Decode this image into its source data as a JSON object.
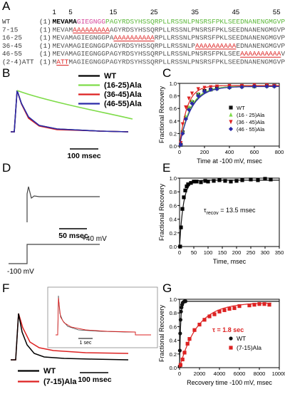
{
  "panels": {
    "A": {
      "letter": "A",
      "ruler": [
        "1",
        "5",
        "15",
        "25",
        "35",
        "45",
        "55"
      ],
      "rows": [
        {
          "label": "WT",
          "num": "(1)",
          "segments": [
            {
              "t": "MEVAMA",
              "c": "#000000",
              "b": true
            },
            {
              "t": "GIEGNGG",
              "c": "#d6489c"
            },
            {
              "t": "PAGYRDSYHSSQRPLLRSSNLPNSRSFPKLSEEDNANENGMGVPGS",
              "c": "#5cb83a"
            }
          ]
        },
        {
          "label": "7-15",
          "num": "(1)",
          "segments": [
            {
              "t": "MEVAM",
              "c": "#555555"
            },
            {
              "t": "AAAAAAAAA",
              "c": "#dd2222",
              "u": true
            },
            {
              "t": "AGYRDSYHSSQRPLLRSSNLPNSRSFPKLSEEDNANENGMGVPGS",
              "c": "#555555"
            }
          ]
        },
        {
          "label": "16-25",
          "num": "(1)",
          "segments": [
            {
              "t": "MEVAMAGIEGNGGPA",
              "c": "#555555"
            },
            {
              "t": "AAAAAAAAAA",
              "c": "#dd2222",
              "u": true
            },
            {
              "t": "RPLLRSSNLPNSRSFPKLSEEDNANENGMGVPGS",
              "c": "#555555"
            }
          ]
        },
        {
          "label": "36-45",
          "num": "(1)",
          "segments": [
            {
              "t": "MEVAMAGIEGNGGPAGYRDSYHSSQRPLLRSSNLP",
              "c": "#555555"
            },
            {
              "t": "AAAAAAAAAA",
              "c": "#dd2222",
              "u": true
            },
            {
              "t": "EDNANENGMGVPGS",
              "c": "#555555"
            }
          ]
        },
        {
          "label": "46-55",
          "num": "(1)",
          "segments": [
            {
              "t": "MEVAMAGIEGNGGPAGYRDSYHSSQRPLLRSSNLPNSRSFPKLSEE",
              "c": "#555555"
            },
            {
              "t": "AAAAAAAAAA",
              "c": "#dd2222",
              "u": true
            },
            {
              "t": "VPGS",
              "c": "#555555"
            }
          ]
        },
        {
          "label": "(2-4)ATT",
          "num": "(1)",
          "segments": [
            {
              "t": "M",
              "c": "#555555"
            },
            {
              "t": "ATT",
              "c": "#dd2222",
              "u": true
            },
            {
              "t": "MAGIEGNGGPAGYRDSYHSSQRPLLRSSNLPNSRSFPKLSEEDNANENGMGVPGS",
              "c": "#555555"
            }
          ]
        }
      ]
    },
    "B": {
      "letter": "B",
      "legend": [
        {
          "label": "WT",
          "color": "#000000"
        },
        {
          "label": "(16-25)Ala",
          "color": "#7fdc4a"
        },
        {
          "label": "(36-45)Ala",
          "color": "#dd2222"
        },
        {
          "label": "(46-55)Ala",
          "color": "#2a2aa8"
        }
      ],
      "scalebar": "100 msec"
    },
    "C": {
      "letter": "C",
      "chart_data": {
        "type": "scatter",
        "xlabel": "Time at -100 mV, msec",
        "ylabel": "Fractional Recovery",
        "xlim": [
          0,
          800
        ],
        "ylim": [
          0.0,
          1.0
        ],
        "xticks": [
          "0",
          "200",
          "400",
          "600",
          "800"
        ],
        "yticks": [
          "0.0",
          "0.2",
          "0.4",
          "0.6",
          "0.8",
          "1.0"
        ],
        "series": [
          {
            "name": "WT",
            "color": "#111111",
            "marker": "square",
            "x": [
              10,
              25,
              50,
              75,
              100,
              150,
              200,
              250,
              300,
              400,
              500,
              600,
              700,
              760
            ],
            "y": [
              0.02,
              0.22,
              0.45,
              0.6,
              0.7,
              0.82,
              0.88,
              0.9,
              0.92,
              0.94,
              0.95,
              0.95,
              0.96,
              0.96
            ]
          },
          {
            "name": "(16 - 25)Ala",
            "color": "#7fdc4a",
            "marker": "triangle-up",
            "x": [
              10,
              25,
              50,
              75,
              100,
              150,
              200,
              250,
              300,
              400,
              500,
              600,
              700,
              760
            ],
            "y": [
              0.03,
              0.24,
              0.47,
              0.62,
              0.72,
              0.83,
              0.88,
              0.9,
              0.92,
              0.94,
              0.95,
              0.95,
              0.96,
              0.96
            ]
          },
          {
            "name": "(36 - 45)Ala",
            "color": "#dd2222",
            "marker": "triangle-down",
            "x": [
              10,
              25,
              50,
              75,
              100,
              150,
              200,
              250,
              300,
              400,
              500,
              600,
              700,
              760
            ],
            "y": [
              0.05,
              0.35,
              0.62,
              0.76,
              0.84,
              0.91,
              0.93,
              0.94,
              0.95,
              0.96,
              0.96,
              0.97,
              0.97,
              0.96
            ]
          },
          {
            "name": "(46 - 55)Ala",
            "color": "#2a2aa8",
            "marker": "diamond",
            "x": [
              10,
              25,
              50,
              75,
              100,
              150,
              200,
              250,
              300,
              400,
              500,
              600,
              700,
              760
            ],
            "y": [
              0.02,
              0.2,
              0.43,
              0.58,
              0.68,
              0.8,
              0.87,
              0.9,
              0.91,
              0.93,
              0.94,
              0.95,
              0.95,
              0.95
            ]
          }
        ]
      }
    },
    "D": {
      "letter": "D",
      "scalebar": "50 msec",
      "v_hold": "-100 mV",
      "v_step": "+40 mV"
    },
    "E": {
      "letter": "E",
      "tau_symbol": "τ",
      "tau_sub": "recov",
      "tau_rest": " = 13.5 msec",
      "chart_data": {
        "type": "scatter",
        "xlabel": "Time, msec",
        "ylabel": "Fractional Recovery",
        "xlim": [
          0,
          350
        ],
        "ylim": [
          0.0,
          1.0
        ],
        "xticks": [
          "0",
          "50",
          "100",
          "150",
          "200",
          "250",
          "300",
          "350"
        ],
        "yticks": [
          "0.0",
          "0.2",
          "0.4",
          "0.6",
          "0.8",
          "1.0"
        ],
        "series": [
          {
            "x": [
              2,
              5,
              10,
              15,
              20,
              25,
              30,
              40,
              50,
              60,
              75,
              90,
              100,
              120,
              140,
              160,
              180,
              200,
              220,
              250,
              275,
              300,
              320
            ],
            "y": [
              0.0,
              0.28,
              0.55,
              0.72,
              0.82,
              0.88,
              0.91,
              0.93,
              0.95,
              0.95,
              0.94,
              0.96,
              0.95,
              0.96,
              0.97,
              0.96,
              0.95,
              0.96,
              0.97,
              0.98,
              0.97,
              0.99,
              0.98
            ]
          }
        ]
      }
    },
    "F": {
      "letter": "F",
      "legend": [
        {
          "label": "WT",
          "color": "#000000"
        },
        {
          "label": "(7-15)Ala",
          "color": "#dd2222"
        }
      ],
      "scalebar": "100 msec",
      "inset_scalebar": "1 sec"
    },
    "G": {
      "letter": "G",
      "tau_symbol": "τ",
      "tau_rest": " = 1.8 sec",
      "chart_data": {
        "type": "scatter",
        "xlabel": "Recovery time -100 mV, msec",
        "ylabel": "Fractional Recovery",
        "xlim": [
          0,
          10000
        ],
        "ylim": [
          0.0,
          1.0
        ],
        "xticks": [
          "0",
          "2000",
          "4000",
          "6000",
          "8000",
          "10000"
        ],
        "yticks": [
          "0.0",
          "0.2",
          "0.4",
          "0.6",
          "0.8",
          "1.0"
        ],
        "series": [
          {
            "name": "WT",
            "color": "#111111",
            "marker": "circle",
            "x": [
              10,
              30,
              60,
              100,
              150,
              200,
              260,
              320,
              400,
              500,
              600
            ],
            "y": [
              0.02,
              0.25,
              0.5,
              0.7,
              0.82,
              0.88,
              0.92,
              0.95,
              0.96,
              0.97,
              0.97
            ]
          },
          {
            "name": "(7-15)Ala",
            "color": "#dd2222",
            "marker": "square",
            "x": [
              100,
              300,
              500,
              800,
              1000,
              1500,
              2000,
              2500,
              3000,
              3500,
              4000,
              4500,
              5000,
              5500,
              6000,
              7000,
              7500,
              8000,
              8500,
              9000
            ],
            "y": [
              0.04,
              0.12,
              0.22,
              0.35,
              0.42,
              0.55,
              0.63,
              0.7,
              0.75,
              0.78,
              0.82,
              0.84,
              0.86,
              0.87,
              0.9,
              0.91,
              0.92,
              0.93,
              0.93,
              0.92
            ]
          }
        ]
      }
    }
  }
}
